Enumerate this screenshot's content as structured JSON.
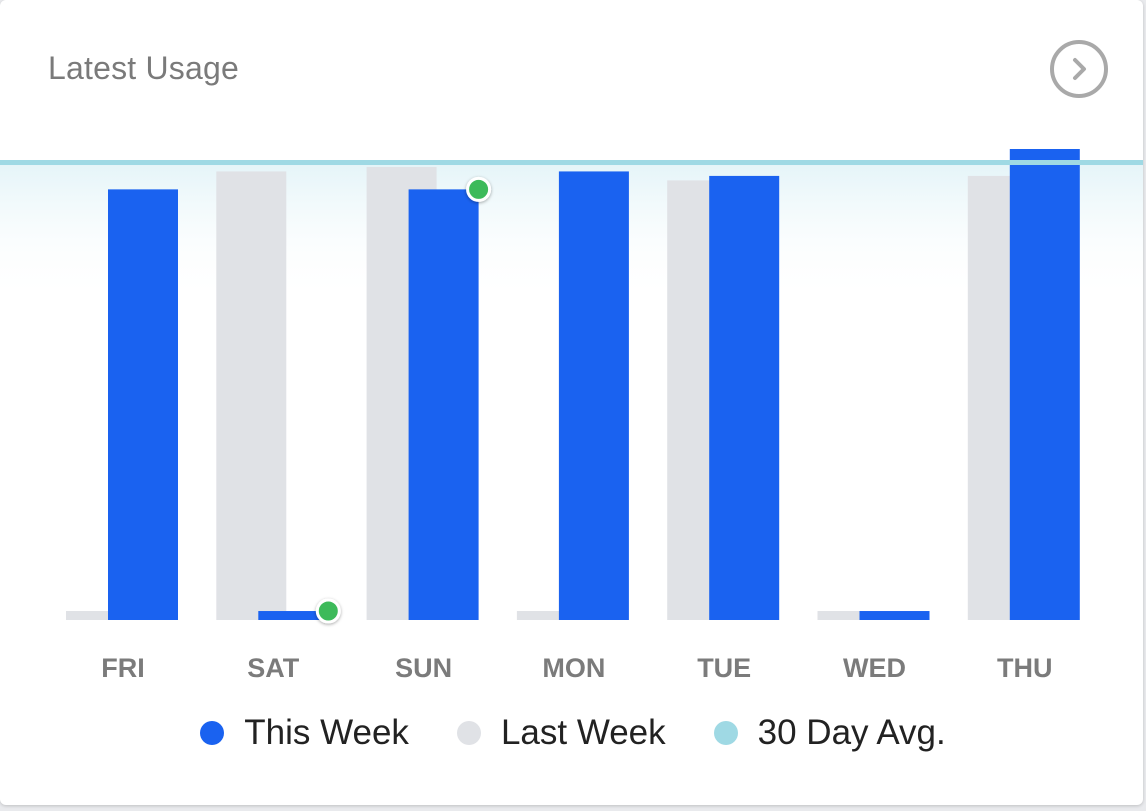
{
  "card": {
    "title": "Latest Usage",
    "next_icon": "chevron-right-icon"
  },
  "colors": {
    "this_week": "#1a62f0",
    "last_week": "#e0e2e6",
    "avg": "#9fd9e4",
    "highlight": "#3dba5a"
  },
  "chart_data": {
    "type": "bar",
    "categories": [
      "FRI",
      "SAT",
      "SUN",
      "MON",
      "TUE",
      "WED",
      "THU"
    ],
    "series": [
      {
        "name": "This Week",
        "values": [
          96,
          2,
          96,
          100,
          99,
          2,
          105
        ]
      },
      {
        "name": "Last Week",
        "values": [
          2,
          100,
          101,
          2,
          98,
          2,
          99
        ]
      }
    ],
    "avg_line": {
      "name": "30 Day Avg.",
      "value": 102
    },
    "highlighted_points": [
      {
        "category": "SAT",
        "series": "This Week"
      },
      {
        "category": "SUN",
        "series": "This Week"
      }
    ],
    "ylim": [
      0,
      105
    ],
    "grid": false,
    "legend_position": "bottom"
  },
  "legend": [
    {
      "label": "This Week",
      "color": "#1a62f0"
    },
    {
      "label": "Last Week",
      "color": "#e0e2e6"
    },
    {
      "label": "30 Day Avg.",
      "color": "#9fd9e4"
    }
  ]
}
